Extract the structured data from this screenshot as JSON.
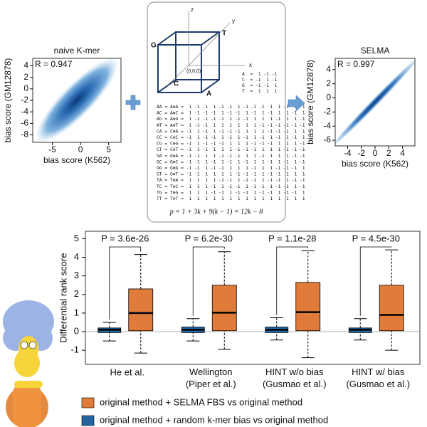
{
  "chart_data": [
    {
      "type": "scatter",
      "title": "naive K-mer",
      "annotation": "R = 0.947",
      "x_label": "bias score (K562)",
      "y_label": "bias score (GM12878)",
      "xlim": [
        -8.5,
        7.2
      ],
      "xticks": [
        -5,
        0,
        5
      ],
      "ylim": [
        -9.3,
        5.3
      ],
      "yticks": [
        4,
        2,
        0,
        -2,
        -4,
        -6,
        -8
      ],
      "color": "#2e74b5"
    },
    {
      "type": "scatter",
      "title": "SELMA",
      "annotation": "R = 0.997",
      "x_label": "bias score (K562)",
      "y_label": "bias score (GM12878)",
      "xlim": [
        -5.8,
        5.8
      ],
      "xticks": [
        -4,
        -2,
        0,
        2,
        4
      ],
      "ylim": [
        -6.8,
        5.6
      ],
      "yticks": [
        4,
        2,
        0,
        -2,
        -4,
        -6
      ],
      "color": "#1f5aa6"
    },
    {
      "type": "box",
      "y_label": "Differential rank score",
      "categories": [
        "He et al.",
        "Wellington\n(Piper et al.)",
        "HINT w/o bias\n(Gusmao et al.)",
        "HINT w/ bias\n(Gusmao et al.)"
      ],
      "annotations": [
        "P = 3.6e-26",
        "P = 6.2e-30",
        "P = 1.1e-28",
        "P = 4.5e-30"
      ],
      "ylim": [
        -1.76,
        5.4
      ],
      "yticks": [
        -1,
        0,
        1,
        2,
        3,
        4,
        5
      ],
      "series": [
        {
          "name": "original method + random k-mer bias vs original method",
          "color": "#2467a0",
          "values": [
            [
              -0.5,
              -0.05,
              0.1,
              0.2,
              0.5
            ],
            [
              -0.5,
              -0.05,
              0.1,
              0.25,
              0.7
            ],
            [
              -0.45,
              -0.05,
              0.1,
              0.25,
              0.75
            ],
            [
              -0.45,
              -0.05,
              0.1,
              0.2,
              0.7
            ]
          ]
        },
        {
          "name": "original method + SELMA FBS vs original method",
          "color": "#e07b39",
          "values": [
            [
              -1.15,
              0.05,
              1.0,
              2.3,
              4.15
            ],
            [
              -0.95,
              0.05,
              1.02,
              2.5,
              4.3
            ],
            [
              -1.4,
              0.05,
              1.05,
              2.65,
              4.35
            ],
            [
              -1.0,
              0.05,
              0.9,
              2.5,
              4.4
            ]
          ]
        }
      ]
    }
  ],
  "diagram": {
    "axis_labels": [
      "z",
      "y",
      "x"
    ],
    "vertex_labels": [
      "G",
      "T",
      "C",
      "A"
    ],
    "origin": "(0,0,0)",
    "encoding": [
      "A  =  1 -1 -1",
      "C  = -1  1 -1",
      "G  = -1 -1  1",
      "T  =  1  1  1"
    ],
    "rows": [
      "AA = A⊗A =  1 -1 -1  1 -1 -1  1 -1 -1 -1  1  1 -1  1  1",
      "AC = A⊗C =  1 -1 -1 -1  1 -1 -1  1 -1  1 -1  1  1 -1  1",
      "AG = A⊗G =  1 -1 -1 -1 -1  1 -1 -1  1  1  1 -1  1  1 -1",
      "AT = A⊗T =  1 -1 -1  1  1  1  1  1  1 -1 -1 -1 -1 -1 -1",
      "CA = C⊗A = -1  1 -1  1 -1 -1 -1  1  1  1 -1 -1 -1  1  1",
      "CC = C⊗C = -1  1 -1 -1  1 -1  1 -1  1 -1  1 -1  1 -1  1",
      "CG = C⊗G = -1  1 -1 -1 -1  1  1  1 -1 -1 -1  1  1  1 -1",
      "CT = C⊗T = -1  1 -1  1  1  1 -1 -1 -1  1  1  1 -1 -1 -1",
      "GA = G⊗A = -1 -1  1  1 -1 -1 -1  1  1 -1  1  1  1 -1 -1",
      "GC = G⊗C = -1 -1  1 -1  1 -1  1 -1  1  1 -1  1 -1  1 -1",
      "GG = G⊗G = -1 -1  1 -1 -1  1  1  1 -1  1  1 -1 -1 -1  1",
      "GT = G⊗T = -1 -1  1  1  1  1 -1 -1 -1 -1 -1 -1  1  1  1",
      "TA = T⊗A =  1  1  1  1 -1 -1  1 -1 -1  1 -1 -1  1 -1 -1",
      "TC = T⊗C =  1  1  1 -1  1 -1 -1  1 -1 -1  1 -1 -1  1 -1",
      "TG = T⊗G =  1  1  1 -1 -1  1 -1 -1  1 -1 -1  1 -1 -1  1",
      "TT = T⊗T =  1  1  1  1  1  1  1  1  1  1  1  1  1  1  1"
    ],
    "formula": "p = 1 + 3k + 9(k − 1) = 12k − 8"
  }
}
